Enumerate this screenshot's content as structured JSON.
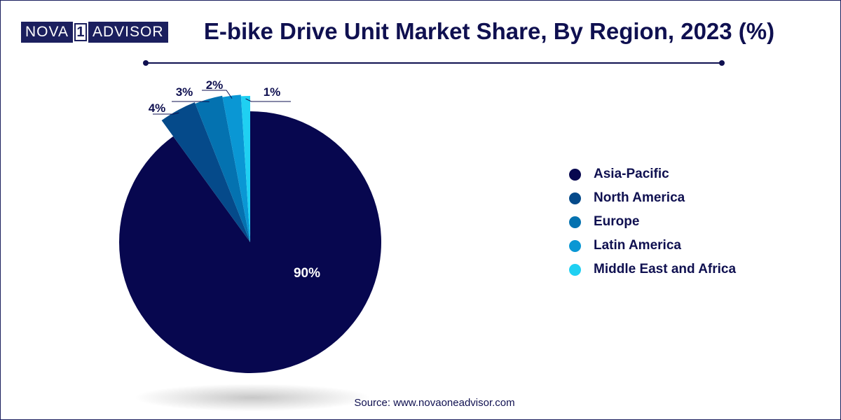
{
  "logo": {
    "part1": "NOVA",
    "part2": "1",
    "part3": "ADVISOR"
  },
  "title": "E-bike Drive Unit Market Share, By Region, 2023 (%)",
  "source": "Source: www.novaoneadvisor.com",
  "chart_data": {
    "type": "pie",
    "title": "E-bike Drive Unit Market Share, By Region, 2023 (%)",
    "categories": [
      "Asia-Pacific",
      "North America",
      "Europe",
      "Latin America",
      "Middle East and Africa"
    ],
    "values": [
      90,
      4,
      3,
      2,
      1
    ],
    "labels": [
      "90%",
      "4%",
      "3%",
      "2%",
      "1%"
    ],
    "colors": [
      "#07074f",
      "#054a8a",
      "#0472b0",
      "#0a97d4",
      "#1fd0f2"
    ],
    "legend_position": "right",
    "start": "top",
    "direction": "clockwise"
  }
}
